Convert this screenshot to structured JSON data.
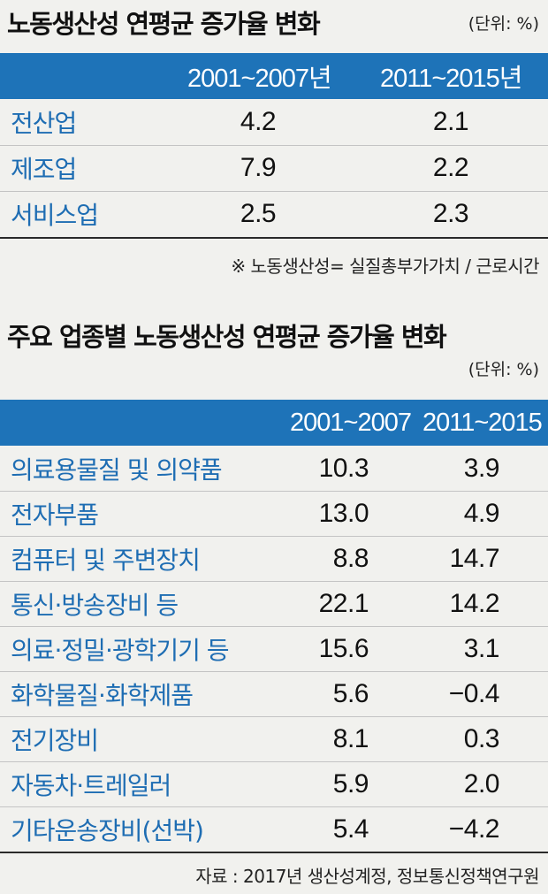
{
  "chart_data": [
    {
      "type": "table",
      "title": "노동생산성 연평균 증가율 변화",
      "unit": "(단위: %)",
      "columns": [
        "",
        "2001~2007년",
        "2011~2015년"
      ],
      "rows": [
        {
          "label": "전산업",
          "values": [
            "4.2",
            "2.1"
          ]
        },
        {
          "label": "제조업",
          "values": [
            "7.9",
            "2.2"
          ]
        },
        {
          "label": "서비스업",
          "values": [
            "2.5",
            "2.3"
          ]
        }
      ],
      "note": "※ 노동생산성= 실질총부가가치 / 근로시간"
    },
    {
      "type": "table",
      "title": "주요 업종별 노동생산성 연평균 증가율 변화",
      "unit": "(단위: %)",
      "columns": [
        "",
        "2001~2007",
        "2011~2015"
      ],
      "rows": [
        {
          "label": "의료용물질 및 의약품",
          "values": [
            "10.3",
            "3.9"
          ]
        },
        {
          "label": "전자부품",
          "values": [
            "13.0",
            "4.9"
          ]
        },
        {
          "label": "컴퓨터 및 주변장치",
          "values": [
            "8.8",
            "14.7"
          ]
        },
        {
          "label": "통신·방송장비 등",
          "values": [
            "22.1",
            "14.2"
          ]
        },
        {
          "label": "의료·정밀·광학기기 등",
          "values": [
            "15.6",
            "3.1"
          ]
        },
        {
          "label": "화학물질·화학제품",
          "values": [
            "5.6",
            "−0.4"
          ]
        },
        {
          "label": "전기장비",
          "values": [
            "8.1",
            "0.3"
          ]
        },
        {
          "label": "자동차·트레일러",
          "values": [
            "5.9",
            "2.0"
          ]
        },
        {
          "label": "기타운송장비(선박)",
          "values": [
            "5.4",
            "−4.2"
          ]
        }
      ],
      "source": "자료 : 2017년 생산성계정, 정보통신정책연구원"
    }
  ]
}
